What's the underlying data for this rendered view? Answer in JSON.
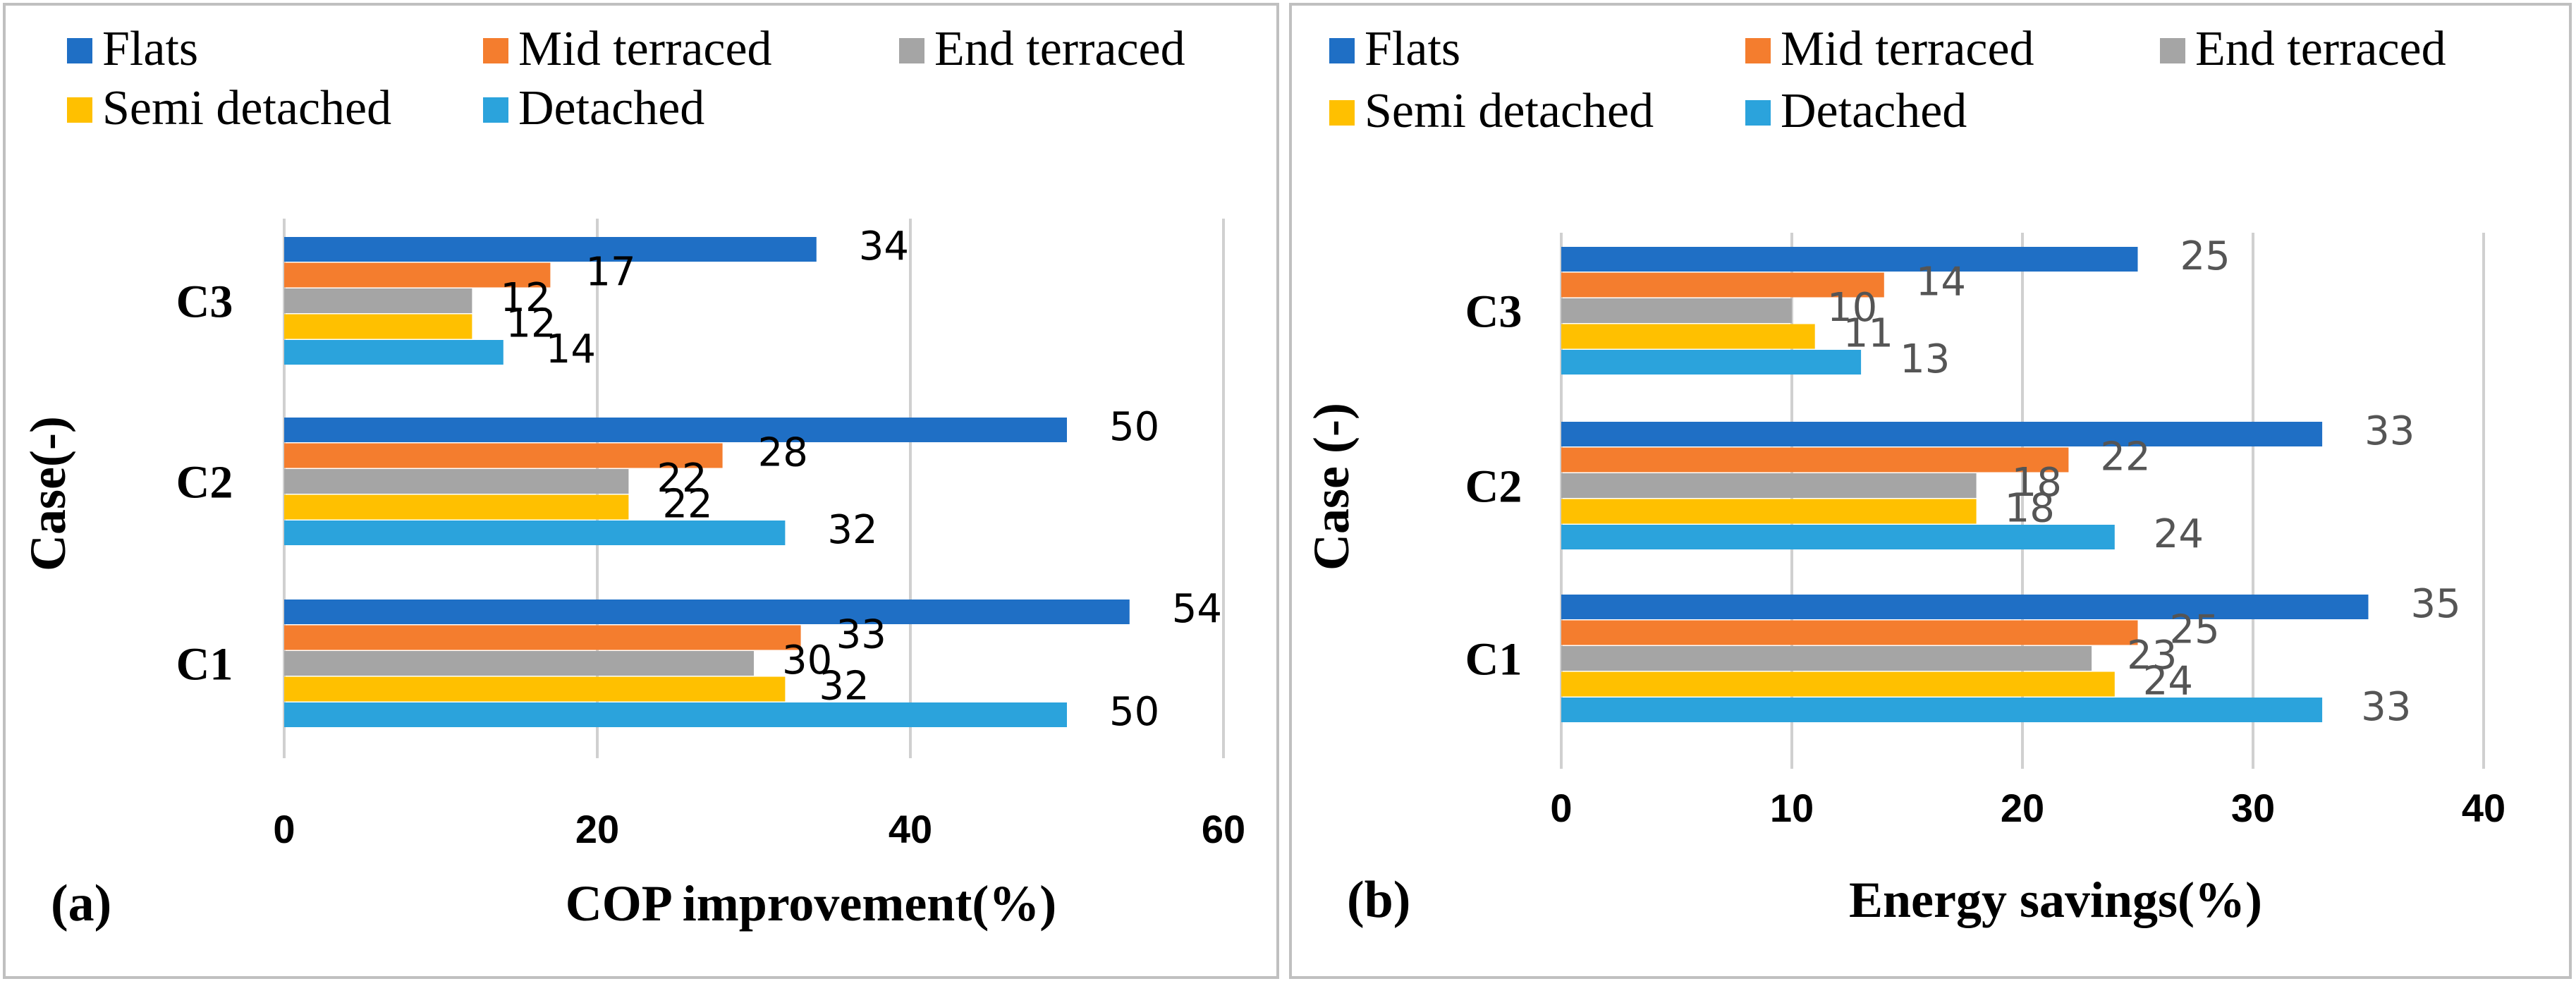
{
  "colors": {
    "flats": "#1f6fc5",
    "mid_terraced": "#f47d2e",
    "end_terraced": "#a5a5a5",
    "semi_detached": "#ffc000",
    "detached": "#2ba3dc",
    "gridline": "#d0d0d0",
    "frame": "#c0c0c0"
  },
  "chart_data": [
    {
      "type": "bar",
      "orientation": "horizontal",
      "panel_label": "(a)",
      "xlabel": "COP improvement(%)",
      "ylabel": "Case(-)",
      "xlim": [
        0,
        60
      ],
      "xticks": [
        "0",
        "20",
        "40",
        "60"
      ],
      "xtick_values": [
        0,
        20,
        40,
        60
      ],
      "grid": true,
      "legend_position": "top",
      "categories": [
        "C1",
        "C2",
        "C3"
      ],
      "series": [
        {
          "name": "Flats",
          "color_key": "flats",
          "values": [
            54,
            50,
            34
          ]
        },
        {
          "name": "Mid terraced",
          "color_key": "mid_terraced",
          "values": [
            33,
            28,
            17
          ]
        },
        {
          "name": "End terraced",
          "color_key": "end_terraced",
          "values": [
            30,
            22,
            12
          ]
        },
        {
          "name": "Semi detached",
          "color_key": "semi_detached",
          "values": [
            32,
            22,
            12
          ]
        },
        {
          "name": "Detached",
          "color_key": "detached",
          "values": [
            50,
            32,
            14
          ]
        }
      ]
    },
    {
      "type": "bar",
      "orientation": "horizontal",
      "panel_label": "(b)",
      "xlabel": "Energy savings(%)",
      "ylabel": "Case (-)",
      "xlim": [
        0,
        40
      ],
      "xticks": [
        "0",
        "10",
        "20",
        "30",
        "40"
      ],
      "xtick_values": [
        0,
        10,
        20,
        30,
        40
      ],
      "grid": true,
      "legend_position": "top",
      "categories": [
        "C1",
        "C2",
        "C3"
      ],
      "series": [
        {
          "name": "Flats",
          "color_key": "flats",
          "values": [
            35,
            33,
            25
          ]
        },
        {
          "name": "Mid terraced",
          "color_key": "mid_terraced",
          "values": [
            25,
            22,
            14
          ]
        },
        {
          "name": "End terraced",
          "color_key": "end_terraced",
          "values": [
            23,
            18,
            10
          ]
        },
        {
          "name": "Semi detached",
          "color_key": "semi_detached",
          "values": [
            24,
            18,
            11
          ]
        },
        {
          "name": "Detached",
          "color_key": "detached",
          "values": [
            33,
            24,
            13
          ]
        }
      ]
    }
  ]
}
